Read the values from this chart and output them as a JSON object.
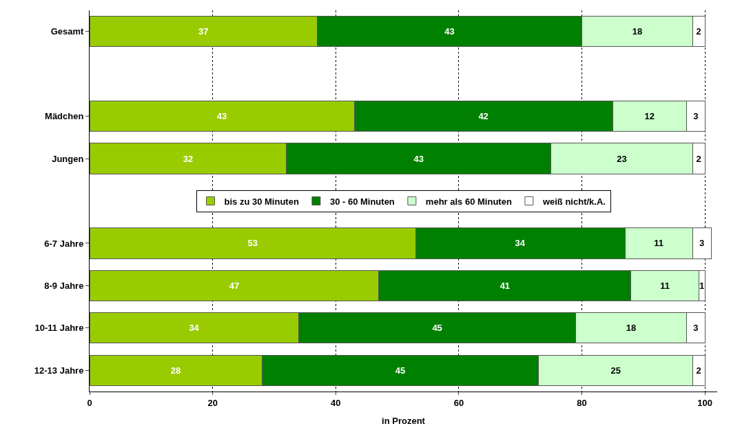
{
  "chart_data": {
    "type": "bar",
    "orientation": "horizontal",
    "stacked": true,
    "data_labels": true,
    "grid": "x",
    "legend": "center",
    "xlabel": "in Prozent",
    "categories": [
      "Gesamt",
      null,
      "Mädchen",
      "Jungen",
      null,
      "6-7 Jahre",
      "8-9 Jahre",
      "10-11 Jahre",
      "12-13 Jahre"
    ],
    "xlim": [
      0,
      102
    ],
    "xticks": [
      0,
      20,
      40,
      60,
      80,
      100
    ],
    "series": [
      {
        "name": "bis zu 30 Minuten",
        "color": "#99cc00",
        "values": [
          37,
          null,
          43,
          32,
          null,
          53,
          47,
          34,
          28
        ]
      },
      {
        "name": "30 - 60 Minuten",
        "color": "#008000",
        "values": [
          43,
          null,
          42,
          43,
          null,
          34,
          41,
          45,
          45
        ]
      },
      {
        "name": "mehr als 60 Minuten",
        "color": "#ccffcc",
        "values": [
          18,
          null,
          12,
          23,
          null,
          11,
          11,
          18,
          25
        ]
      },
      {
        "name": "weiß nicht/k.A.",
        "color": "#ffffff",
        "values": [
          2,
          null,
          3,
          2,
          null,
          3,
          1,
          3,
          2
        ]
      }
    ]
  }
}
